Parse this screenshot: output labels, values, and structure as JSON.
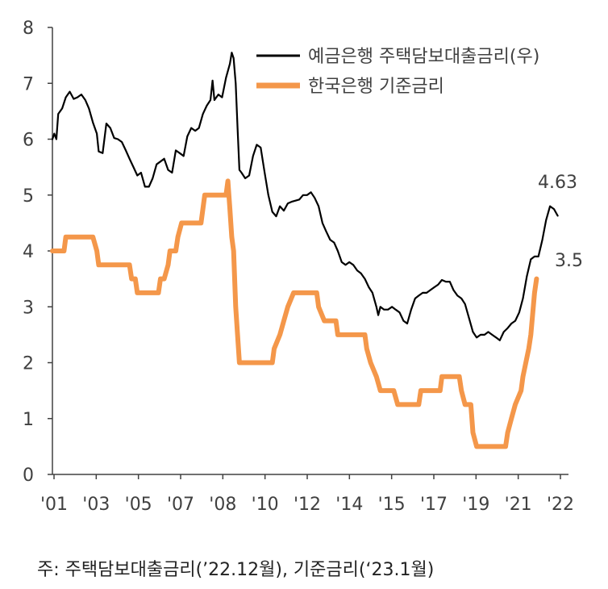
{
  "chart_data": {
    "type": "line",
    "x_tick_labels": [
      "'01",
      "'03",
      "'05",
      "'07",
      "'08",
      "'10",
      "'12",
      "'14",
      "'15",
      "'17",
      "'19",
      "'21",
      "'22"
    ],
    "y_tick_labels": [
      "0",
      "1",
      "2",
      "3",
      "4",
      "5",
      "6",
      "7",
      "8"
    ],
    "ylim": [
      0,
      8
    ],
    "grid": false,
    "legend_position": "top-right",
    "series": [
      {
        "name": "예금은행 주택담보대출금리(우)",
        "color": "#000000",
        "values": [
          [
            2001.0,
            6.0
          ],
          [
            2001.08,
            6.1
          ],
          [
            2001.17,
            6.0
          ],
          [
            2001.25,
            6.45
          ],
          [
            2001.42,
            6.55
          ],
          [
            2001.58,
            6.75
          ],
          [
            2001.75,
            6.85
          ],
          [
            2001.92,
            6.72
          ],
          [
            2002.08,
            6.75
          ],
          [
            2002.25,
            6.8
          ],
          [
            2002.42,
            6.7
          ],
          [
            2002.58,
            6.55
          ],
          [
            2002.75,
            6.3
          ],
          [
            2002.92,
            6.1
          ],
          [
            2003.0,
            5.78
          ],
          [
            2003.17,
            5.75
          ],
          [
            2003.33,
            6.28
          ],
          [
            2003.5,
            6.2
          ],
          [
            2003.67,
            6.02
          ],
          [
            2003.83,
            6.0
          ],
          [
            2004.0,
            5.95
          ],
          [
            2004.17,
            5.8
          ],
          [
            2004.33,
            5.65
          ],
          [
            2004.5,
            5.5
          ],
          [
            2004.67,
            5.35
          ],
          [
            2004.83,
            5.4
          ],
          [
            2005.0,
            5.15
          ],
          [
            2005.17,
            5.15
          ],
          [
            2005.33,
            5.3
          ],
          [
            2005.5,
            5.55
          ],
          [
            2005.67,
            5.6
          ],
          [
            2005.83,
            5.65
          ],
          [
            2006.0,
            5.45
          ],
          [
            2006.17,
            5.4
          ],
          [
            2006.33,
            5.8
          ],
          [
            2006.5,
            5.75
          ],
          [
            2006.67,
            5.7
          ],
          [
            2006.83,
            6.05
          ],
          [
            2007.0,
            6.2
          ],
          [
            2007.17,
            6.15
          ],
          [
            2007.33,
            6.2
          ],
          [
            2007.5,
            6.45
          ],
          [
            2007.67,
            6.6
          ],
          [
            2007.83,
            6.7
          ],
          [
            2007.92,
            7.05
          ],
          [
            2008.0,
            6.7
          ],
          [
            2008.17,
            6.8
          ],
          [
            2008.33,
            6.75
          ],
          [
            2008.5,
            7.1
          ],
          [
            2008.67,
            7.35
          ],
          [
            2008.75,
            7.55
          ],
          [
            2008.83,
            7.45
          ],
          [
            2008.92,
            7.0
          ],
          [
            2009.0,
            6.2
          ],
          [
            2009.08,
            5.45
          ],
          [
            2009.17,
            5.4
          ],
          [
            2009.33,
            5.3
          ],
          [
            2009.5,
            5.35
          ],
          [
            2009.67,
            5.7
          ],
          [
            2009.83,
            5.9
          ],
          [
            2010.0,
            5.85
          ],
          [
            2010.17,
            5.4
          ],
          [
            2010.33,
            5.0
          ],
          [
            2010.5,
            4.7
          ],
          [
            2010.67,
            4.62
          ],
          [
            2010.83,
            4.8
          ],
          [
            2011.0,
            4.72
          ],
          [
            2011.17,
            4.85
          ],
          [
            2011.33,
            4.88
          ],
          [
            2011.5,
            4.9
          ],
          [
            2011.67,
            4.92
          ],
          [
            2011.83,
            5.0
          ],
          [
            2012.0,
            5.0
          ],
          [
            2012.17,
            5.05
          ],
          [
            2012.33,
            4.95
          ],
          [
            2012.5,
            4.8
          ],
          [
            2012.67,
            4.5
          ],
          [
            2012.83,
            4.35
          ],
          [
            2013.0,
            4.2
          ],
          [
            2013.17,
            4.15
          ],
          [
            2013.33,
            4.0
          ],
          [
            2013.5,
            3.8
          ],
          [
            2013.67,
            3.75
          ],
          [
            2013.83,
            3.8
          ],
          [
            2014.0,
            3.75
          ],
          [
            2014.17,
            3.65
          ],
          [
            2014.33,
            3.6
          ],
          [
            2014.5,
            3.5
          ],
          [
            2014.67,
            3.35
          ],
          [
            2014.83,
            3.25
          ],
          [
            2015.0,
            3.0
          ],
          [
            2015.08,
            2.85
          ],
          [
            2015.17,
            3.0
          ],
          [
            2015.33,
            2.95
          ],
          [
            2015.5,
            2.95
          ],
          [
            2015.67,
            3.0
          ],
          [
            2015.83,
            2.95
          ],
          [
            2016.0,
            2.9
          ],
          [
            2016.17,
            2.75
          ],
          [
            2016.33,
            2.7
          ],
          [
            2016.5,
            2.95
          ],
          [
            2016.67,
            3.15
          ],
          [
            2016.83,
            3.2
          ],
          [
            2017.0,
            3.25
          ],
          [
            2017.17,
            3.25
          ],
          [
            2017.33,
            3.3
          ],
          [
            2017.5,
            3.35
          ],
          [
            2017.67,
            3.4
          ],
          [
            2017.83,
            3.48
          ],
          [
            2018.0,
            3.45
          ],
          [
            2018.17,
            3.45
          ],
          [
            2018.33,
            3.3
          ],
          [
            2018.5,
            3.2
          ],
          [
            2018.67,
            3.15
          ],
          [
            2018.83,
            3.05
          ],
          [
            2019.0,
            2.8
          ],
          [
            2019.17,
            2.55
          ],
          [
            2019.33,
            2.45
          ],
          [
            2019.5,
            2.5
          ],
          [
            2019.67,
            2.5
          ],
          [
            2019.83,
            2.55
          ],
          [
            2020.0,
            2.5
          ],
          [
            2020.17,
            2.45
          ],
          [
            2020.33,
            2.4
          ],
          [
            2020.5,
            2.55
          ],
          [
            2020.67,
            2.62
          ],
          [
            2020.83,
            2.7
          ],
          [
            2021.0,
            2.75
          ],
          [
            2021.17,
            2.9
          ],
          [
            2021.33,
            3.15
          ],
          [
            2021.5,
            3.55
          ],
          [
            2021.67,
            3.85
          ],
          [
            2021.83,
            3.9
          ],
          [
            2022.0,
            3.9
          ],
          [
            2022.17,
            4.2
          ],
          [
            2022.33,
            4.55
          ],
          [
            2022.5,
            4.8
          ],
          [
            2022.67,
            4.75
          ],
          [
            2022.83,
            4.63
          ]
        ]
      },
      {
        "name": "한국은행 기준금리",
        "color": "#f4974a",
        "values": [
          [
            2001.0,
            4.0
          ],
          [
            2001.5,
            4.0
          ],
          [
            2001.58,
            4.25
          ],
          [
            2002.75,
            4.25
          ],
          [
            2002.92,
            4.0
          ],
          [
            2003.0,
            3.75
          ],
          [
            2004.33,
            3.75
          ],
          [
            2004.42,
            3.5
          ],
          [
            2004.58,
            3.5
          ],
          [
            2004.67,
            3.25
          ],
          [
            2005.58,
            3.25
          ],
          [
            2005.67,
            3.5
          ],
          [
            2005.83,
            3.5
          ],
          [
            2006.0,
            3.75
          ],
          [
            2006.08,
            4.0
          ],
          [
            2006.33,
            4.0
          ],
          [
            2006.42,
            4.25
          ],
          [
            2006.58,
            4.5
          ],
          [
            2007.42,
            4.5
          ],
          [
            2007.5,
            4.75
          ],
          [
            2007.58,
            5.0
          ],
          [
            2008.5,
            5.0
          ],
          [
            2008.58,
            5.25
          ],
          [
            2008.67,
            4.75
          ],
          [
            2008.75,
            4.25
          ],
          [
            2008.83,
            4.0
          ],
          [
            2008.92,
            3.0
          ],
          [
            2009.0,
            2.5
          ],
          [
            2009.08,
            2.0
          ],
          [
            2010.5,
            2.0
          ],
          [
            2010.58,
            2.25
          ],
          [
            2010.83,
            2.5
          ],
          [
            2011.0,
            2.75
          ],
          [
            2011.17,
            3.0
          ],
          [
            2011.42,
            3.25
          ],
          [
            2012.42,
            3.25
          ],
          [
            2012.5,
            3.0
          ],
          [
            2012.75,
            2.75
          ],
          [
            2013.25,
            2.75
          ],
          [
            2013.33,
            2.5
          ],
          [
            2014.5,
            2.5
          ],
          [
            2014.58,
            2.25
          ],
          [
            2014.75,
            2.0
          ],
          [
            2015.0,
            1.75
          ],
          [
            2015.17,
            1.5
          ],
          [
            2015.75,
            1.5
          ],
          [
            2015.92,
            1.25
          ],
          [
            2016.83,
            1.25
          ],
          [
            2016.92,
            1.5
          ],
          [
            2017.75,
            1.5
          ],
          [
            2017.83,
            1.75
          ],
          [
            2018.58,
            1.75
          ],
          [
            2018.67,
            1.5
          ],
          [
            2018.83,
            1.25
          ],
          [
            2019.08,
            1.25
          ],
          [
            2019.17,
            0.75
          ],
          [
            2019.33,
            0.5
          ],
          [
            2020.58,
            0.5
          ],
          [
            2020.67,
            0.75
          ],
          [
            2020.83,
            1.0
          ],
          [
            2021.0,
            1.25
          ],
          [
            2021.25,
            1.5
          ],
          [
            2021.33,
            1.75
          ],
          [
            2021.58,
            2.25
          ],
          [
            2021.67,
            2.5
          ],
          [
            2021.83,
            3.25
          ],
          [
            2021.92,
            3.5
          ]
        ]
      }
    ],
    "annotations": [
      {
        "text": "4.63",
        "series": 0
      },
      {
        "text": "3.5",
        "series": 1
      }
    ]
  },
  "footnote": "주: 주택담보대출금리(’22.12월), 기준금리(‘23.1월)"
}
